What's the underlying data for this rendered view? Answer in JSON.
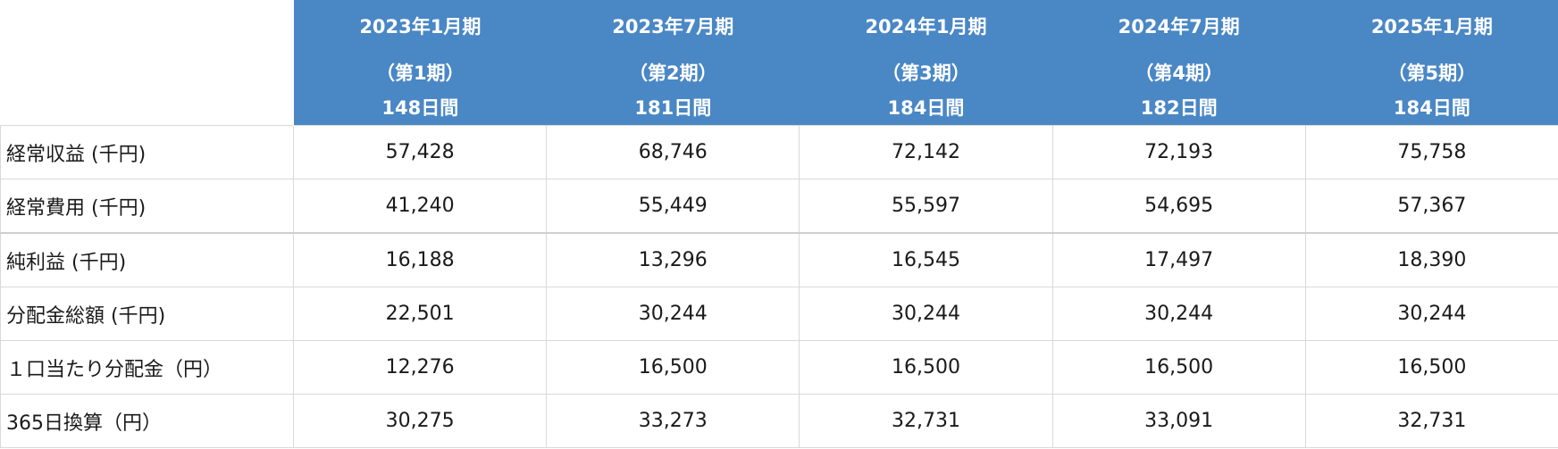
{
  "table": {
    "periods": [
      {
        "term": "2023年1月期",
        "num": "（第1期）",
        "days": "148日間"
      },
      {
        "term": "2023年7月期",
        "num": "（第2期）",
        "days": "181日間"
      },
      {
        "term": "2024年1月期",
        "num": "（第3期）",
        "days": "184日間"
      },
      {
        "term": "2024年7月期",
        "num": "（第4期）",
        "days": "182日間"
      },
      {
        "term": "2025年1月期",
        "num": "（第5期）",
        "days": "184日間"
      }
    ],
    "rows": [
      {
        "label": "経常収益 (千円)",
        "values": [
          "57,428",
          "68,746",
          "72,142",
          "72,193",
          "75,758"
        ]
      },
      {
        "label": "経常費用 (千円)",
        "values": [
          "41,240",
          "55,449",
          "55,597",
          "54,695",
          "57,367"
        ]
      },
      {
        "label": "純利益 (千円)",
        "values": [
          "16,188",
          "13,296",
          "16,545",
          "17,497",
          "18,390"
        ]
      },
      {
        "label": "分配金総額 (千円)",
        "values": [
          "22,501",
          "30,244",
          "30,244",
          "30,244",
          "30,244"
        ]
      },
      {
        "label": "１口当たり分配金（円）",
        "values": [
          "12,276",
          "16,500",
          "16,500",
          "16,500",
          "16,500"
        ]
      },
      {
        "label": "365日換算（円）",
        "values": [
          "30,275",
          "33,273",
          "32,731",
          "33,091",
          "32,731"
        ]
      }
    ]
  },
  "colors": {
    "header_background": "#4a87c5",
    "header_text": "#ffffff",
    "grid_line": "#d9d9d9"
  }
}
